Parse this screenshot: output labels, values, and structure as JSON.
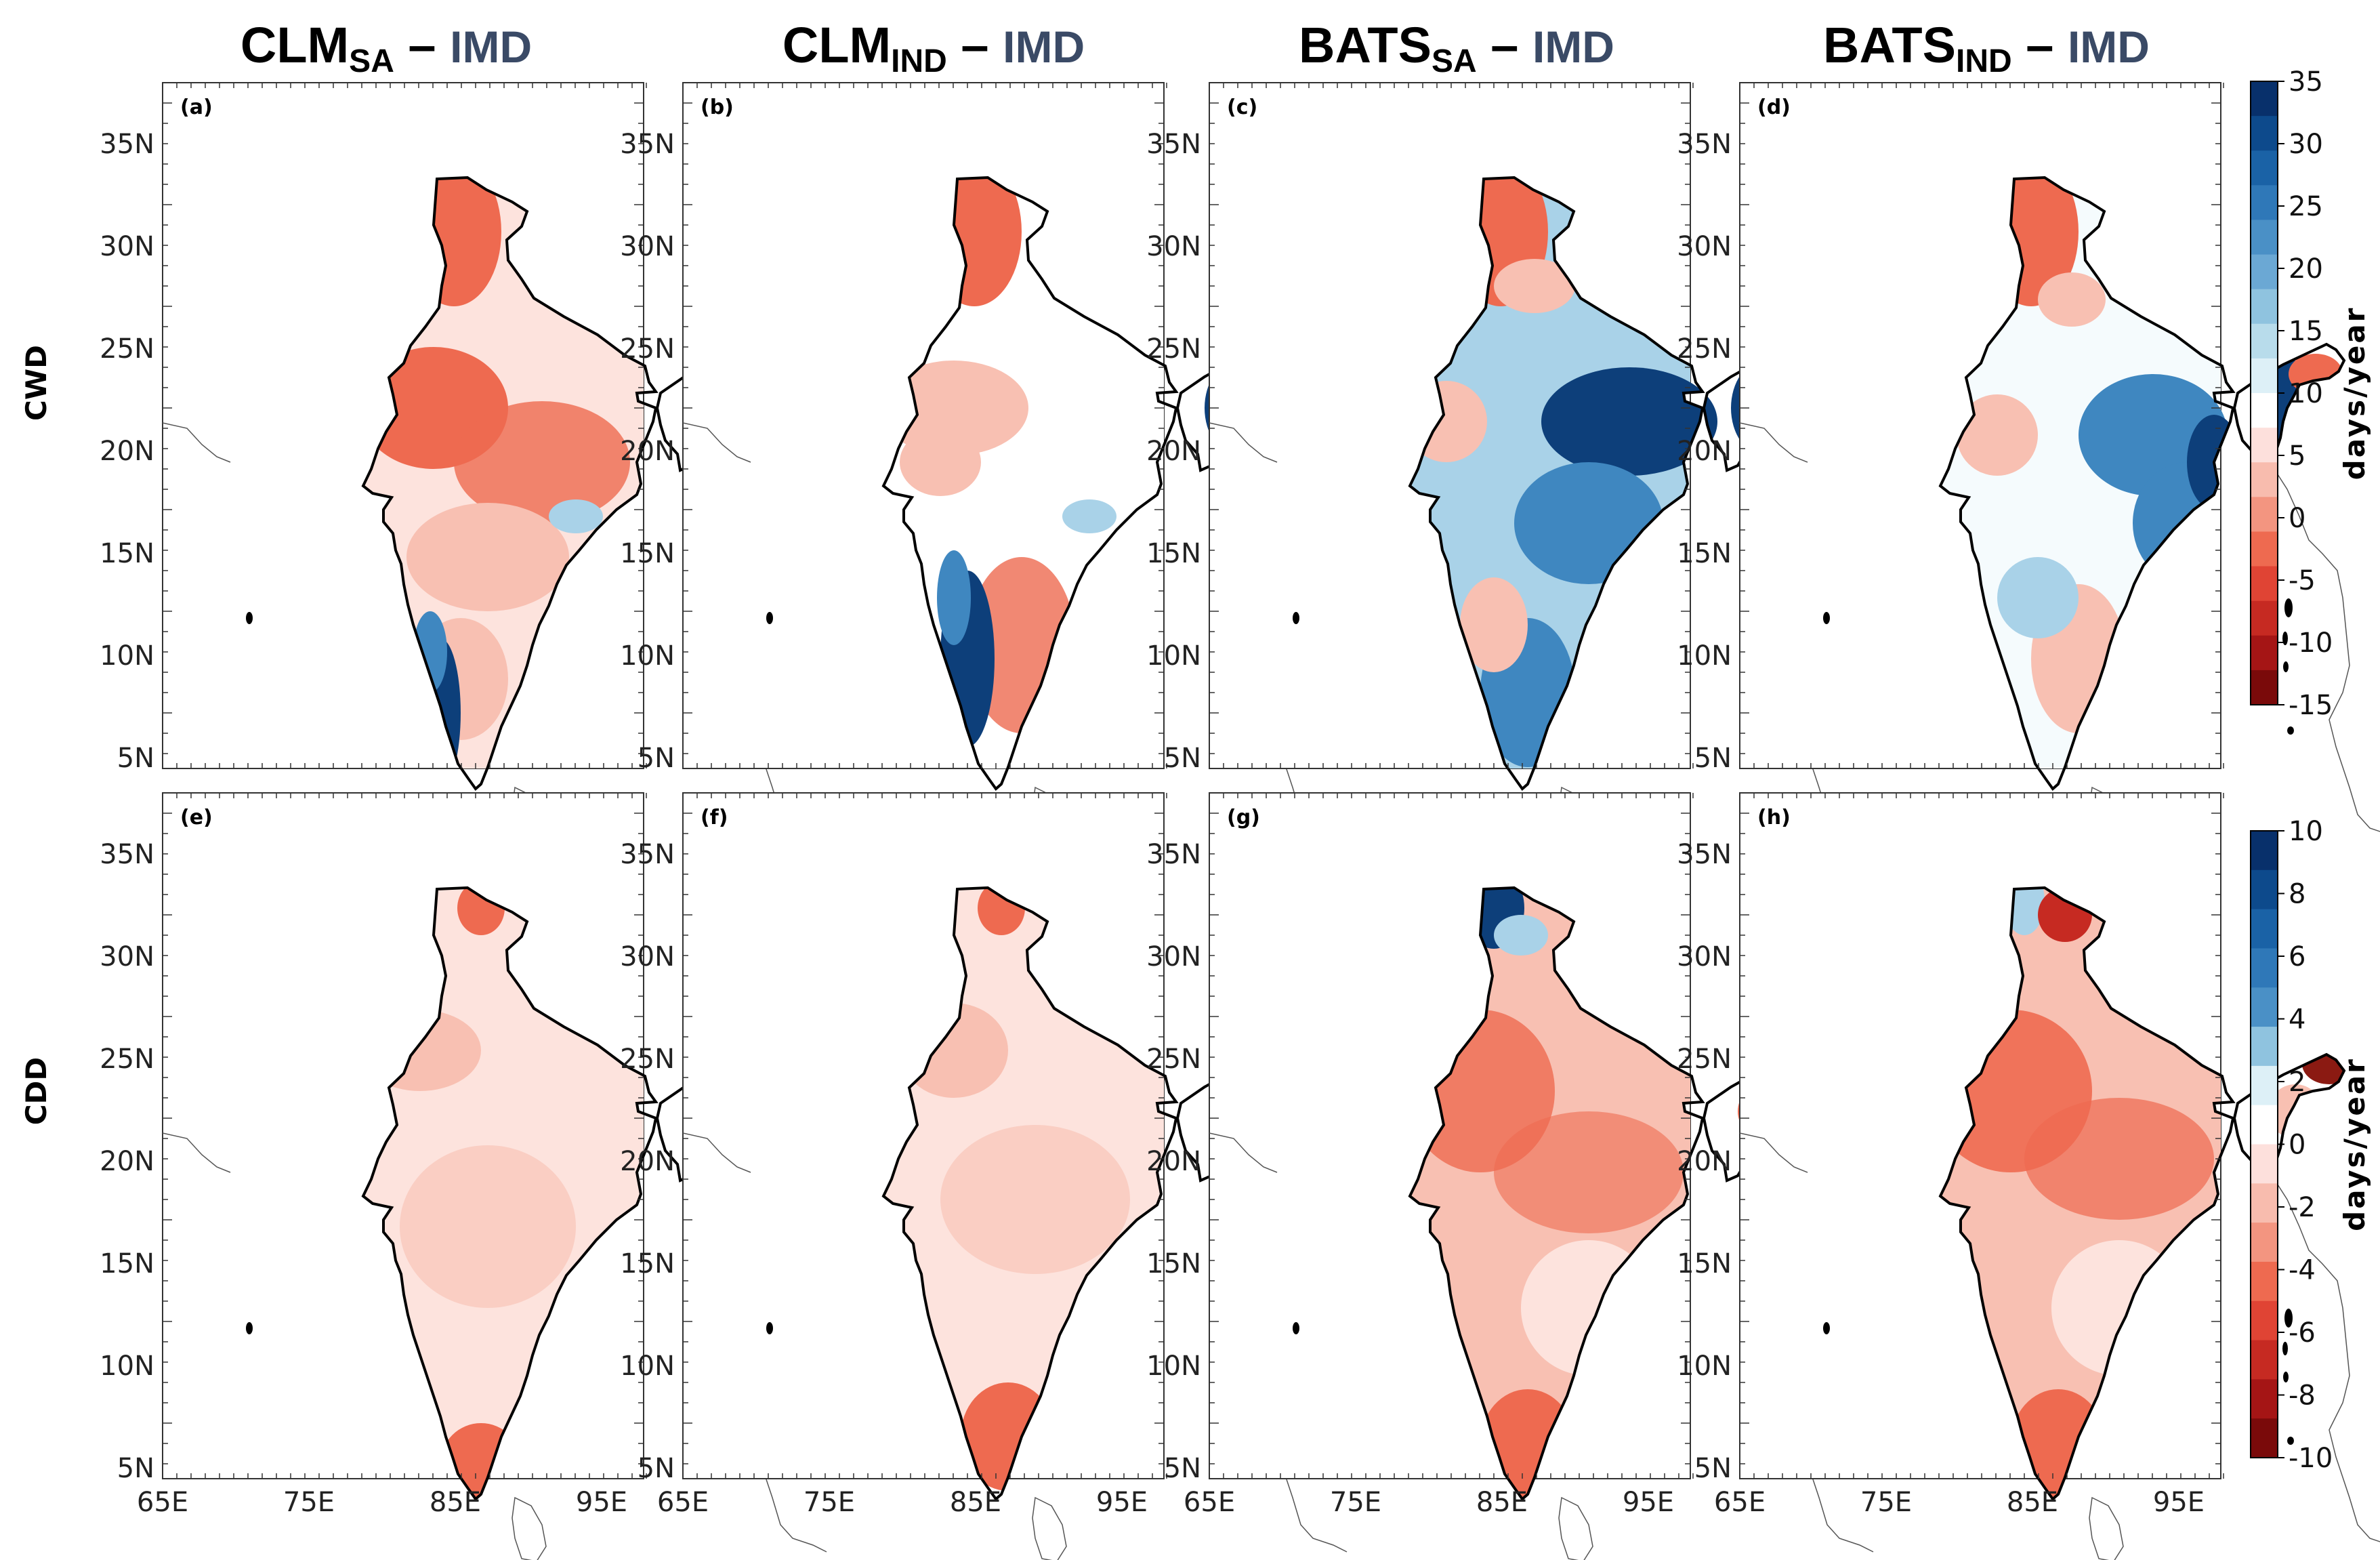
{
  "figure": {
    "columns": [
      {
        "main": "CLM",
        "sub": "SA",
        "dash": "– ",
        "ref": "IMD"
      },
      {
        "main": "CLM",
        "sub": "IND",
        "dash": "– ",
        "ref": "IMD"
      },
      {
        "main": "BATS",
        "sub": "SA",
        "dash": "– ",
        "ref": "IMD"
      },
      {
        "main": "BATS",
        "sub": "IND",
        "dash": "– ",
        "ref": "IMD"
      }
    ],
    "rows": [
      {
        "label": "CWD",
        "panels": [
          "(a)",
          "(b)",
          "(c)",
          "(d)"
        ]
      },
      {
        "label": "CDD",
        "panels": [
          "(e)",
          "(f)",
          "(g)",
          "(h)"
        ]
      }
    ],
    "lat_ticks": [
      "35N",
      "30N",
      "25N",
      "20N",
      "15N",
      "10N",
      "5N"
    ],
    "lon_ticks": [
      "65E",
      "75E",
      "85E",
      "95E"
    ]
  },
  "colorbars": [
    {
      "unit": "days/year",
      "tick_labels": [
        "35",
        "30",
        "25",
        "20",
        "15",
        "10",
        "5",
        "0",
        "-5",
        "-10",
        "-15"
      ],
      "colors": [
        "#08306b",
        "#0d4a8c",
        "#1a62a6",
        "#2f78b8",
        "#4a90c6",
        "#6ba8d4",
        "#8fc3df",
        "#b8dceb",
        "#ddf0f7",
        "#ffffff",
        "#fde0dc",
        "#f8bcae",
        "#f39580",
        "#ee6a50",
        "#e04434",
        "#c62a22",
        "#a51515",
        "#7a0a0a"
      ]
    },
    {
      "unit": "days/year",
      "tick_labels": [
        "10",
        "8",
        "6",
        "4",
        "2",
        "0",
        "-2",
        "-4",
        "-6",
        "-8",
        "-10"
      ],
      "colors": [
        "#08306b",
        "#0d4a8c",
        "#1a62a6",
        "#2f78b8",
        "#4a90c6",
        "#8fc3df",
        "#ddf0f7",
        "#ffffff",
        "#fde0dc",
        "#f8bcae",
        "#f39580",
        "#ee6a50",
        "#e04434",
        "#c62a22",
        "#a51515",
        "#7a0a0a"
      ]
    }
  ],
  "colors": {
    "red_strong": "#ee6a50",
    "red_light": "#f8c0b2",
    "red_pale": "#fde3dd",
    "blue_dark": "#0d3f7a",
    "blue_mid": "#3f87c0",
    "blue_light": "#a9d2e8"
  }
}
